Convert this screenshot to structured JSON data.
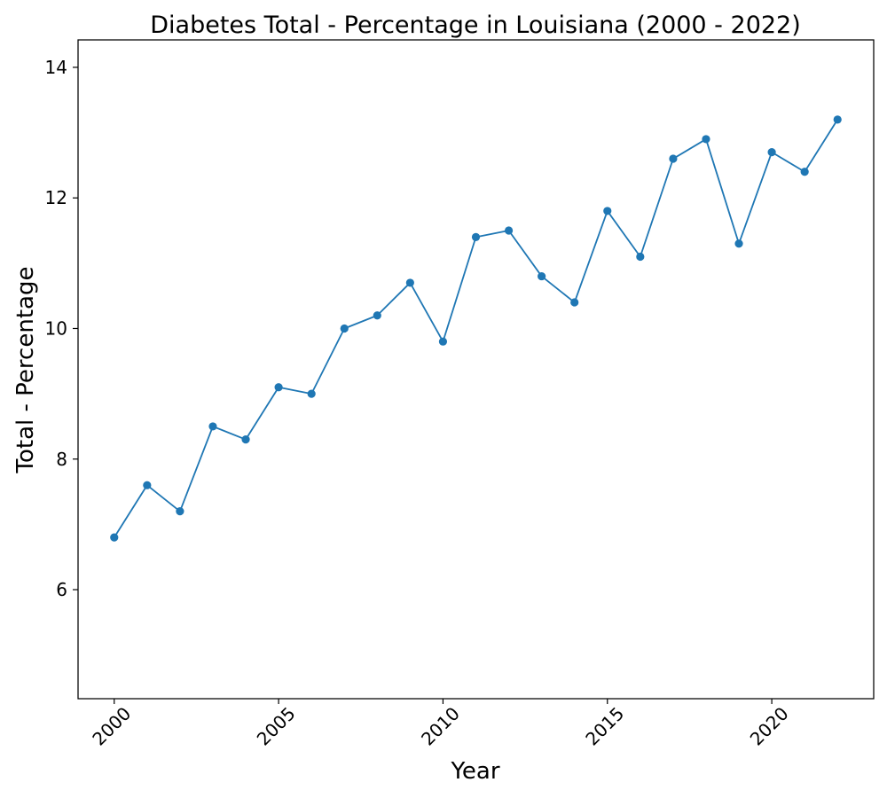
{
  "chart_data": {
    "type": "line",
    "title": "Diabetes Total - Percentage in Louisiana (2000 - 2022)",
    "xlabel": "Year",
    "ylabel": "Total - Percentage",
    "x": [
      2000,
      2001,
      2002,
      2003,
      2004,
      2005,
      2006,
      2007,
      2008,
      2009,
      2010,
      2011,
      2012,
      2013,
      2014,
      2015,
      2016,
      2017,
      2018,
      2019,
      2020,
      2021,
      2022
    ],
    "series": [
      {
        "values": [
          6.8,
          7.6,
          7.2,
          8.5,
          8.3,
          9.1,
          9.0,
          10.0,
          10.2,
          10.7,
          9.8,
          11.4,
          11.5,
          10.8,
          10.4,
          11.8,
          11.1,
          12.6,
          12.9,
          11.3,
          12.7,
          12.4,
          13.2
        ],
        "color": "#1f77b4"
      }
    ],
    "xlim": [
      1998.9,
      2023.1
    ],
    "ylim": [
      4.33,
      14.42
    ],
    "xticks": [
      2000,
      2005,
      2010,
      2015,
      2020
    ],
    "xtick_labels": [
      "2000",
      "2005",
      "2010",
      "2015",
      "2020"
    ],
    "yticks": [
      6,
      8,
      10,
      12,
      14
    ],
    "ytick_labels": [
      "6",
      "8",
      "10",
      "12",
      "14"
    ],
    "xtick_rotation_deg": 45,
    "grid": false,
    "legend": "none"
  }
}
